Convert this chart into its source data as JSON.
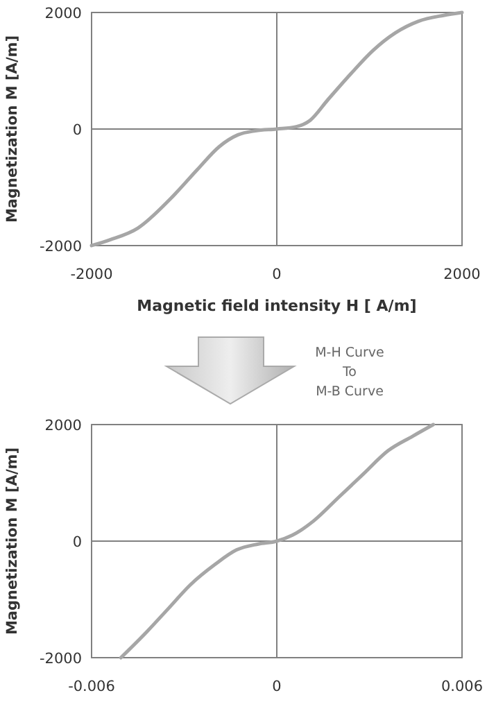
{
  "chart_data": [
    {
      "type": "line",
      "xlabel": "Magnetic field intensity H [ A/m]",
      "ylabel": "Magnetization M [A/m]",
      "xlim": [
        -2000,
        2000
      ],
      "ylim": [
        -2000,
        2000
      ],
      "xticks": [
        -2000,
        0,
        2000
      ],
      "yticks": [
        -2000,
        0,
        2000
      ],
      "grid": true,
      "marker": "none",
      "line_style": "solid",
      "annotations": [
        "M-H Curve\nTo\nM-B Curve"
      ],
      "series": [
        {
          "color": "#a6a6a6",
          "x": [
            -2000,
            -1800,
            -1500,
            -1150,
            -860,
            -620,
            -420,
            -230,
            0,
            210,
            360,
            550,
            800,
            1040,
            1280,
            1530,
            1800,
            2000
          ],
          "values": [
            -2000,
            -1900,
            -1700,
            -1200,
            -700,
            -300,
            -100,
            -30,
            0,
            40,
            150,
            500,
            950,
            1350,
            1650,
            1850,
            1950,
            2000
          ]
        }
      ]
    },
    {
      "type": "line",
      "ylabel": "Magnetization M [A/m]",
      "xlim": [
        -0.006,
        0.006
      ],
      "ylim": [
        -2000,
        2000
      ],
      "xticks": [
        -0.006,
        0,
        0.006
      ],
      "yticks": [
        -2000,
        0,
        2000
      ],
      "grid": true,
      "marker": "none",
      "line_style": "solid",
      "series": [
        {
          "color": "#a6a6a6",
          "x": [
            -0.00505,
            -0.0042,
            -0.0035,
            -0.0028,
            -0.002,
            -0.0013,
            -0.0006,
            0,
            0.0005,
            0.0012,
            0.002,
            0.0028,
            0.0036,
            0.0044,
            0.00507
          ],
          "values": [
            -2000,
            -1550,
            -1150,
            -750,
            -400,
            -150,
            -50,
            0,
            100,
            350,
            750,
            1150,
            1550,
            1800,
            2000
          ]
        }
      ]
    }
  ]
}
